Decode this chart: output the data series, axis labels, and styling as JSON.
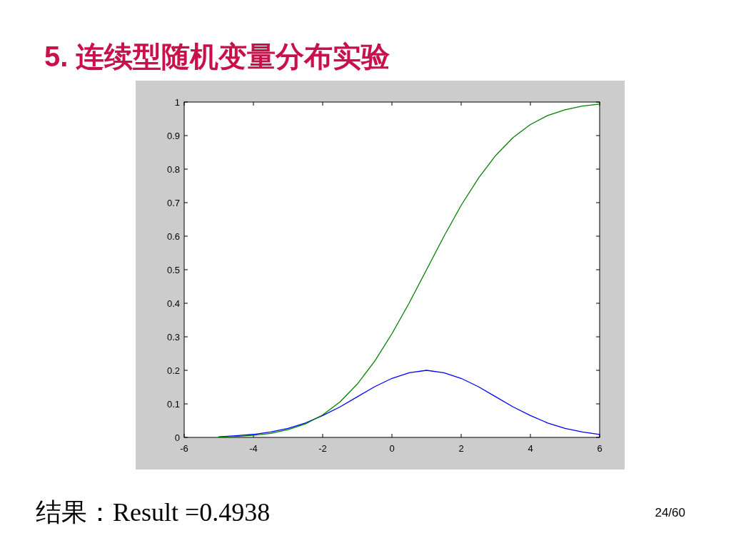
{
  "chart_data": {
    "type": "line",
    "title": "5. 连续型随机变量分布实验",
    "annotations": [
      "结果：Result =0.4938",
      "24/60"
    ],
    "series": [
      {
        "color": "#0000ff",
        "x": [
          -5,
          -4.5,
          -4,
          -3.5,
          -3,
          -2.5,
          -2,
          -1.5,
          -1,
          -0.5,
          0,
          0.5,
          1,
          1.5,
          2,
          2.5,
          3,
          3.5,
          4,
          4.5,
          5,
          5.5,
          6
        ],
        "values": [
          0.002,
          0.005,
          0.009,
          0.016,
          0.027,
          0.043,
          0.065,
          0.091,
          0.121,
          0.151,
          0.176,
          0.193,
          0.2,
          0.193,
          0.176,
          0.151,
          0.121,
          0.091,
          0.065,
          0.043,
          0.027,
          0.016,
          0.009
        ]
      },
      {
        "color": "#008000",
        "x": [
          -5,
          -4.5,
          -4,
          -3.5,
          -3,
          -2.5,
          -2,
          -1.5,
          -1,
          -0.5,
          0,
          0.5,
          1,
          1.5,
          2,
          2.5,
          3,
          3.5,
          4,
          4.5,
          5,
          5.5,
          6
        ],
        "values": [
          0.001,
          0.003,
          0.006,
          0.012,
          0.023,
          0.04,
          0.067,
          0.106,
          0.159,
          0.227,
          0.309,
          0.401,
          0.5,
          0.599,
          0.692,
          0.773,
          0.841,
          0.894,
          0.933,
          0.96,
          0.977,
          0.988,
          0.994
        ]
      }
    ],
    "xlim": [
      -6,
      6
    ],
    "ylim": [
      0,
      1
    ],
    "xticks": [
      -6,
      -4,
      -2,
      0,
      2,
      4,
      6
    ],
    "yticks": [
      0,
      0.1,
      0.2,
      0.3,
      0.4,
      0.5,
      0.6,
      0.7,
      0.8,
      0.9,
      1
    ]
  }
}
